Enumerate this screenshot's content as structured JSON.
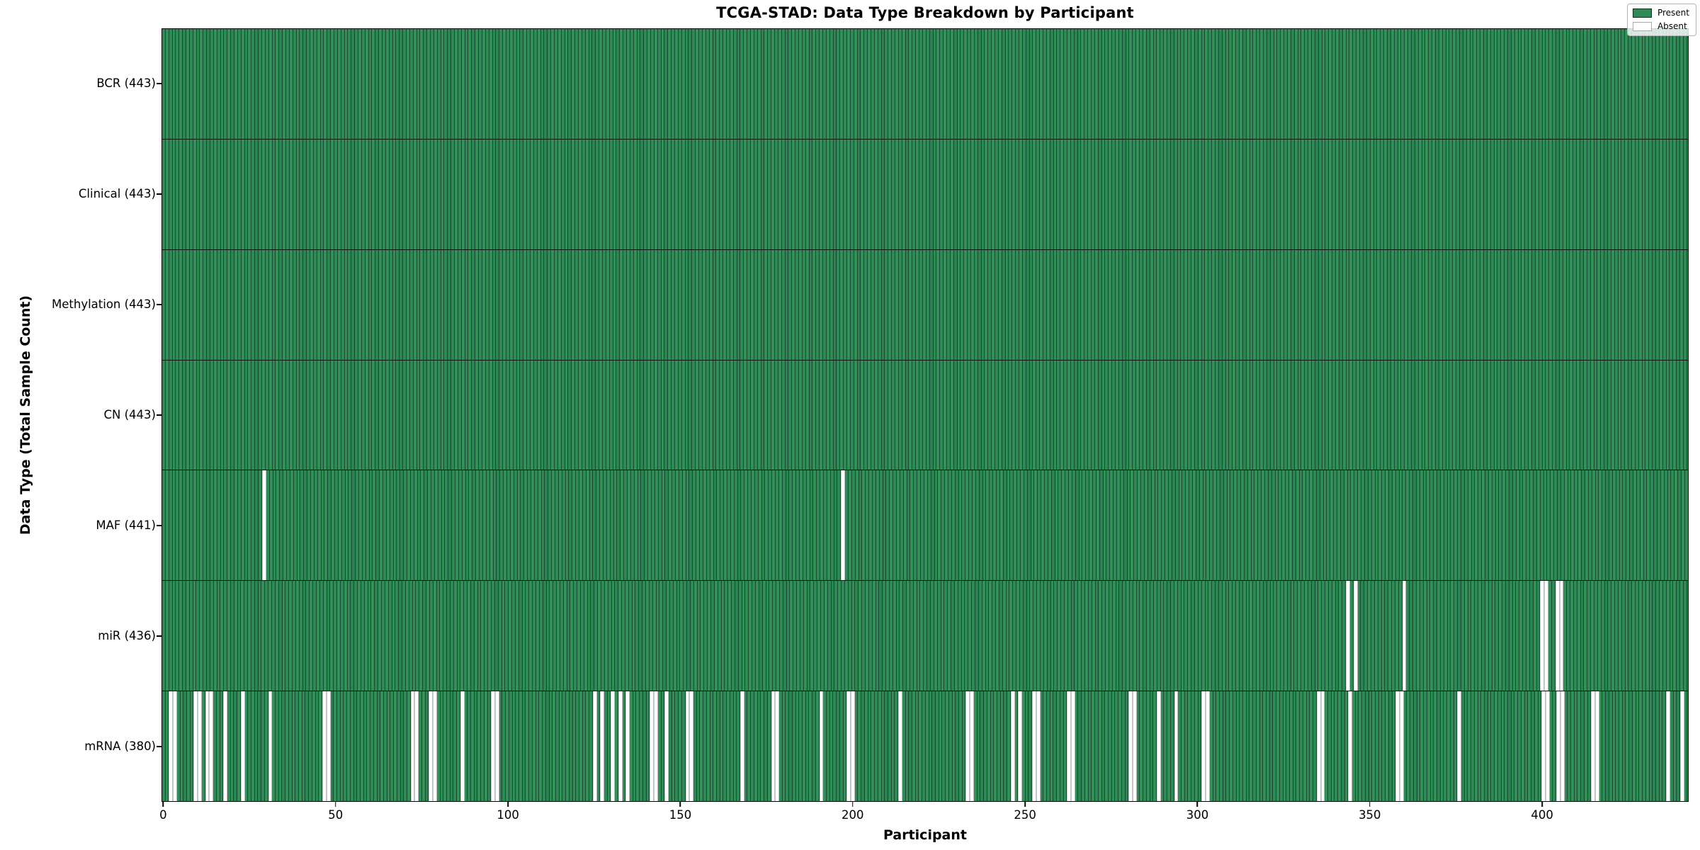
{
  "chart_data": {
    "type": "heatmap",
    "title": "TCGA-STAD: Data Type Breakdown by Participant",
    "xlabel": "Participant",
    "ylabel": "Data Type (Total Sample Count)",
    "n_participants": 443,
    "x_axis_range": [
      0,
      443
    ],
    "x_ticks": [
      0,
      50,
      100,
      150,
      200,
      250,
      300,
      350,
      400
    ],
    "grid": false,
    "legend": {
      "position": "upper-right",
      "entries": [
        {
          "label": "Present",
          "color": "#2e8b57",
          "edge": "#12301e"
        },
        {
          "label": "Absent",
          "color": "#ffffff",
          "edge": "#aaaaaa"
        }
      ]
    },
    "colors": {
      "present": "#2e8b57",
      "absent": "#ffffff",
      "bar_edge": "#0c2a1a",
      "row_divider": "#000000",
      "spine": "#000000"
    },
    "rows": [
      {
        "key": "bcr",
        "label": "BCR (443)",
        "data_type": "BCR",
        "total_sample_count": 443,
        "absent_participants": []
      },
      {
        "key": "clinical",
        "label": "Clinical (443)",
        "data_type": "Clinical",
        "total_sample_count": 443,
        "absent_participants": []
      },
      {
        "key": "methylation",
        "label": "Methylation (443)",
        "data_type": "Methylation",
        "total_sample_count": 443,
        "absent_participants": []
      },
      {
        "key": "cn",
        "label": "CN (443)",
        "data_type": "CN",
        "total_sample_count": 443,
        "absent_participants": []
      },
      {
        "key": "maf",
        "label": "MAF (441)",
        "data_type": "MAF",
        "total_sample_count": 441,
        "absent_participants": [
          29,
          197
        ]
      },
      {
        "key": "mir",
        "label": "miR (436)",
        "data_type": "miR",
        "total_sample_count": 436,
        "absent_participants": [
          345,
          347,
          361,
          401,
          402,
          405,
          406
        ]
      },
      {
        "key": "mrna",
        "label": "mRNA (380)",
        "data_type": "mRNA",
        "total_sample_count": 380,
        "absent_participants": [
          2,
          3,
          9,
          10,
          12,
          13,
          17,
          22,
          30,
          46,
          47,
          72,
          73,
          77,
          78,
          86,
          95,
          96,
          125,
          127,
          130,
          132,
          134,
          141,
          142,
          145,
          151,
          152,
          167,
          176,
          177,
          190,
          198,
          199,
          213,
          233,
          234,
          246,
          248,
          252,
          253,
          262,
          263,
          280,
          281,
          288,
          293,
          301,
          302,
          335,
          336,
          344,
          358,
          359,
          376,
          401,
          402,
          405,
          406,
          415,
          416,
          437,
          441
        ]
      }
    ]
  }
}
